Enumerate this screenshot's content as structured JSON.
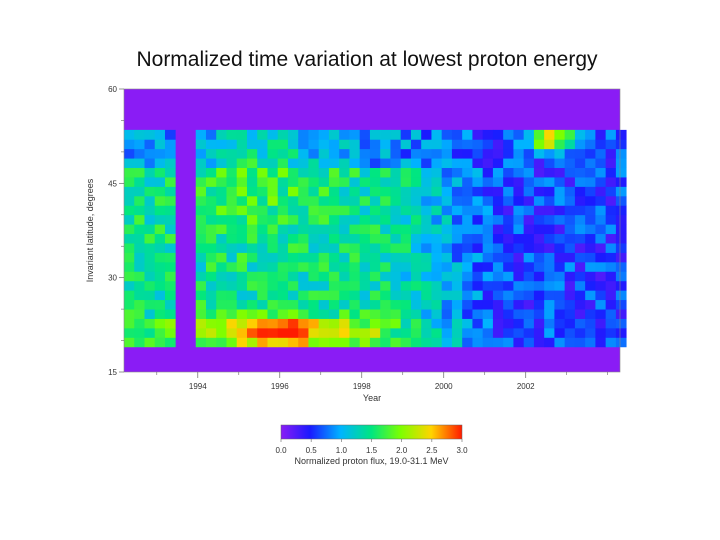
{
  "chart_data": {
    "type": "heatmap",
    "title": "Normalized time variation at lowest proton energy",
    "xlabel": "Year",
    "ylabel": "Invariant latitude, degrees",
    "x_range": [
      1992.2,
      2004.3
    ],
    "y_range": [
      15,
      60
    ],
    "x_ticks": [
      1994,
      1996,
      1998,
      2000,
      2002
    ],
    "x_tick_labels": [
      "1994",
      "1996",
      "1998",
      "2000",
      "2002"
    ],
    "y_ticks": [
      15,
      30,
      45,
      60
    ],
    "y_tick_labels": [
      "15",
      "30",
      "45",
      "60"
    ],
    "colorbar": {
      "label": "Normalized proton flux, 19.0-31.1 MeV",
      "range": [
        0,
        3
      ],
      "ticks": [
        0,
        0.5,
        1,
        1.5,
        2,
        2.5,
        3
      ],
      "tick_labels": [
        "0.0",
        "0.5",
        "1.0",
        "1.5",
        "2.0",
        "2.5",
        "3.0"
      ]
    },
    "no_data_color": "#8a1cf5",
    "data_lat_range": [
      19,
      53.5
    ],
    "data_gap_years": [
      [
        1993.55,
        1994.05
      ]
    ],
    "cell_years": 0.25,
    "cell_lat": 1.5,
    "value_field": {
      "base_upper": 0.9,
      "base_mid_early": 1.45,
      "base_late": 0.6,
      "hotspots": [
        {
          "year": 1996.0,
          "lat": 21.5,
          "value": 2.9,
          "year_spread": 1.4,
          "lat_spread": 2.5
        },
        {
          "year": 1994.8,
          "lat": 22.0,
          "value": 2.4,
          "year_spread": 0.8,
          "lat_spread": 2.0
        },
        {
          "year": 1997.6,
          "lat": 21.5,
          "value": 2.2,
          "year_spread": 1.0,
          "lat_spread": 2.0
        },
        {
          "year": 2002.6,
          "lat": 52.0,
          "value": 2.6,
          "year_spread": 0.6,
          "lat_spread": 1.5
        },
        {
          "year": 1995.5,
          "lat": 44.0,
          "value": 1.7,
          "year_spread": 1.6,
          "lat_spread": 8.0
        }
      ]
    }
  }
}
